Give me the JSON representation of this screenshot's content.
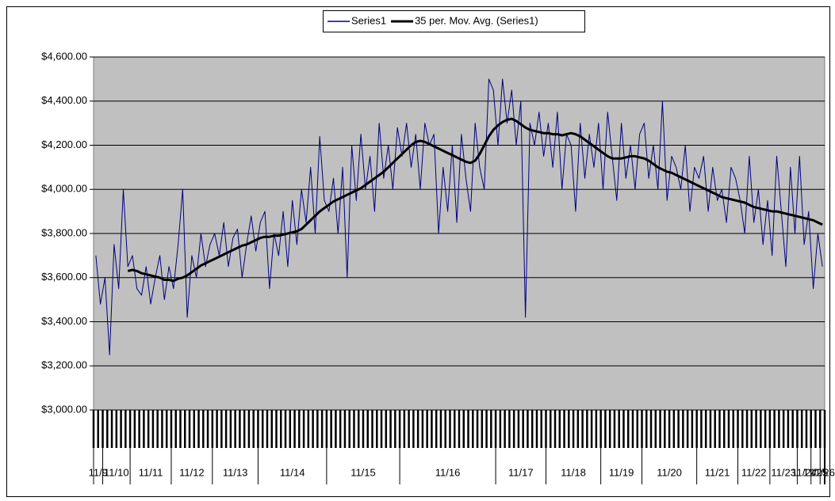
{
  "chart_data": {
    "type": "line",
    "categories": [
      "11/9",
      "11/9",
      "11/10",
      "11/10",
      "11/10",
      "11/10",
      "11/10",
      "11/10",
      "11/11",
      "11/11",
      "11/11",
      "11/11",
      "11/11",
      "11/11",
      "11/11",
      "11/11",
      "11/11",
      "11/12",
      "11/12",
      "11/12",
      "11/12",
      "11/12",
      "11/12",
      "11/12",
      "11/12",
      "11/12",
      "11/13",
      "11/13",
      "11/13",
      "11/13",
      "11/13",
      "11/13",
      "11/13",
      "11/13",
      "11/13",
      "11/13",
      "11/14",
      "11/14",
      "11/14",
      "11/14",
      "11/14",
      "11/14",
      "11/14",
      "11/14",
      "11/14",
      "11/14",
      "11/14",
      "11/14",
      "11/14",
      "11/14",
      "11/14",
      "11/15",
      "11/15",
      "11/15",
      "11/15",
      "11/15",
      "11/15",
      "11/15",
      "11/15",
      "11/15",
      "11/15",
      "11/15",
      "11/15",
      "11/15",
      "11/15",
      "11/15",
      "11/15",
      "11/16",
      "11/16",
      "11/16",
      "11/16",
      "11/16",
      "11/16",
      "11/16",
      "11/16",
      "11/16",
      "11/16",
      "11/16",
      "11/16",
      "11/16",
      "11/16",
      "11/16",
      "11/16",
      "11/16",
      "11/16",
      "11/16",
      "11/16",
      "11/16",
      "11/17",
      "11/17",
      "11/17",
      "11/17",
      "11/17",
      "11/17",
      "11/17",
      "11/17",
      "11/17",
      "11/17",
      "11/17",
      "11/18",
      "11/18",
      "11/18",
      "11/18",
      "11/18",
      "11/18",
      "11/18",
      "11/18",
      "11/18",
      "11/18",
      "11/18",
      "11/18",
      "11/19",
      "11/19",
      "11/19",
      "11/19",
      "11/19",
      "11/19",
      "11/19",
      "11/19",
      "11/19",
      "11/20",
      "11/20",
      "11/20",
      "11/20",
      "11/20",
      "11/20",
      "11/20",
      "11/20",
      "11/20",
      "11/20",
      "11/20",
      "11/20",
      "11/21",
      "11/21",
      "11/21",
      "11/21",
      "11/21",
      "11/21",
      "11/21",
      "11/21",
      "11/21",
      "11/22",
      "11/22",
      "11/22",
      "11/22",
      "11/22",
      "11/22",
      "11/22",
      "11/23",
      "11/23",
      "11/23",
      "11/23",
      "11/23",
      "11/23",
      "11/24",
      "11/24",
      "11/24",
      "11/25",
      "11/25",
      "11/26"
    ],
    "series": [
      {
        "name": "Series1",
        "color": "#000080",
        "values": [
          3700,
          3480,
          3600,
          3250,
          3750,
          3550,
          4000,
          3650,
          3700,
          3550,
          3520,
          3650,
          3480,
          3600,
          3700,
          3500,
          3650,
          3550,
          3750,
          4000,
          3420,
          3700,
          3600,
          3800,
          3650,
          3750,
          3800,
          3700,
          3850,
          3650,
          3780,
          3820,
          3600,
          3750,
          3880,
          3720,
          3850,
          3900,
          3550,
          3800,
          3700,
          3900,
          3650,
          3950,
          3750,
          4000,
          3850,
          4100,
          3800,
          4240,
          3950,
          3900,
          4050,
          3800,
          4100,
          3600,
          4200,
          3950,
          4250,
          4000,
          4150,
          3900,
          4300,
          4050,
          4200,
          4000,
          4280,
          4150,
          4300,
          4100,
          4250,
          4000,
          4300,
          4200,
          4250,
          3800,
          4100,
          3900,
          4200,
          3850,
          4250,
          4050,
          3900,
          4300,
          4100,
          4000,
          4500,
          4450,
          4200,
          4500,
          4300,
          4450,
          4200,
          4400,
          3420,
          4300,
          4200,
          4350,
          4150,
          4300,
          4100,
          4350,
          4000,
          4250,
          4200,
          3900,
          4300,
          4050,
          4250,
          4100,
          4300,
          4000,
          4350,
          4150,
          3950,
          4300,
          4050,
          4200,
          4000,
          4250,
          4300,
          4050,
          4200,
          4000,
          4400,
          3950,
          4150,
          4100,
          4000,
          4200,
          3900,
          4100,
          4050,
          4150,
          3900,
          4100,
          3950,
          4000,
          3850,
          4100,
          4050,
          3950,
          3800,
          4150,
          3850,
          4000,
          3750,
          3950,
          3700,
          4150,
          3900,
          3650,
          4100,
          3800,
          4150,
          3750,
          3900,
          3550,
          3800,
          3650
        ]
      },
      {
        "name": "35 per. Mov. Avg. (Series1)",
        "color": "#000000",
        "values": [
          null,
          null,
          null,
          null,
          null,
          null,
          null,
          3630,
          3635,
          3630,
          3620,
          3615,
          3610,
          3605,
          3600,
          3590,
          3590,
          3585,
          3595,
          3600,
          3610,
          3625,
          3640,
          3655,
          3665,
          3675,
          3685,
          3695,
          3705,
          3715,
          3725,
          3735,
          3745,
          3750,
          3760,
          3770,
          3780,
          3785,
          3785,
          3790,
          3790,
          3795,
          3800,
          3805,
          3810,
          3820,
          3840,
          3860,
          3880,
          3900,
          3915,
          3930,
          3945,
          3955,
          3965,
          3975,
          3985,
          3995,
          4005,
          4020,
          4035,
          4050,
          4065,
          4080,
          4100,
          4120,
          4140,
          4160,
          4180,
          4200,
          4215,
          4220,
          4215,
          4205,
          4195,
          4185,
          4175,
          4165,
          4155,
          4145,
          4135,
          4125,
          4120,
          4130,
          4160,
          4200,
          4240,
          4270,
          4290,
          4305,
          4315,
          4320,
          4310,
          4295,
          4280,
          4270,
          4265,
          4260,
          4255,
          4255,
          4250,
          4250,
          4245,
          4250,
          4255,
          4250,
          4240,
          4225,
          4210,
          4195,
          4180,
          4165,
          4150,
          4140,
          4140,
          4140,
          4145,
          4150,
          4150,
          4145,
          4140,
          4130,
          4115,
          4100,
          4090,
          4080,
          4075,
          4065,
          4055,
          4045,
          4035,
          4025,
          4015,
          4005,
          3995,
          3985,
          3975,
          3965,
          3960,
          3955,
          3950,
          3945,
          3940,
          3930,
          3920,
          3915,
          3910,
          3905,
          3900,
          3900,
          3895,
          3890,
          3885,
          3880,
          3875,
          3870,
          3865,
          3860,
          3850,
          3840
        ]
      }
    ],
    "ylim": [
      3000,
      4600
    ],
    "yticks": [
      {
        "value": 3000,
        "label": "$3,000.00"
      },
      {
        "value": 3200,
        "label": "$3,200.00"
      },
      {
        "value": 3400,
        "label": "$3,400.00"
      },
      {
        "value": 3600,
        "label": "$3,600.00"
      },
      {
        "value": 3800,
        "label": "$3,800.00"
      },
      {
        "value": 4000,
        "label": "$4,000.00"
      },
      {
        "value": 4200,
        "label": "$4,200.00"
      },
      {
        "value": 4400,
        "label": "$4,400.00"
      },
      {
        "value": 4600,
        "label": "$4,600.00"
      }
    ],
    "grid": true,
    "legend": "top"
  }
}
